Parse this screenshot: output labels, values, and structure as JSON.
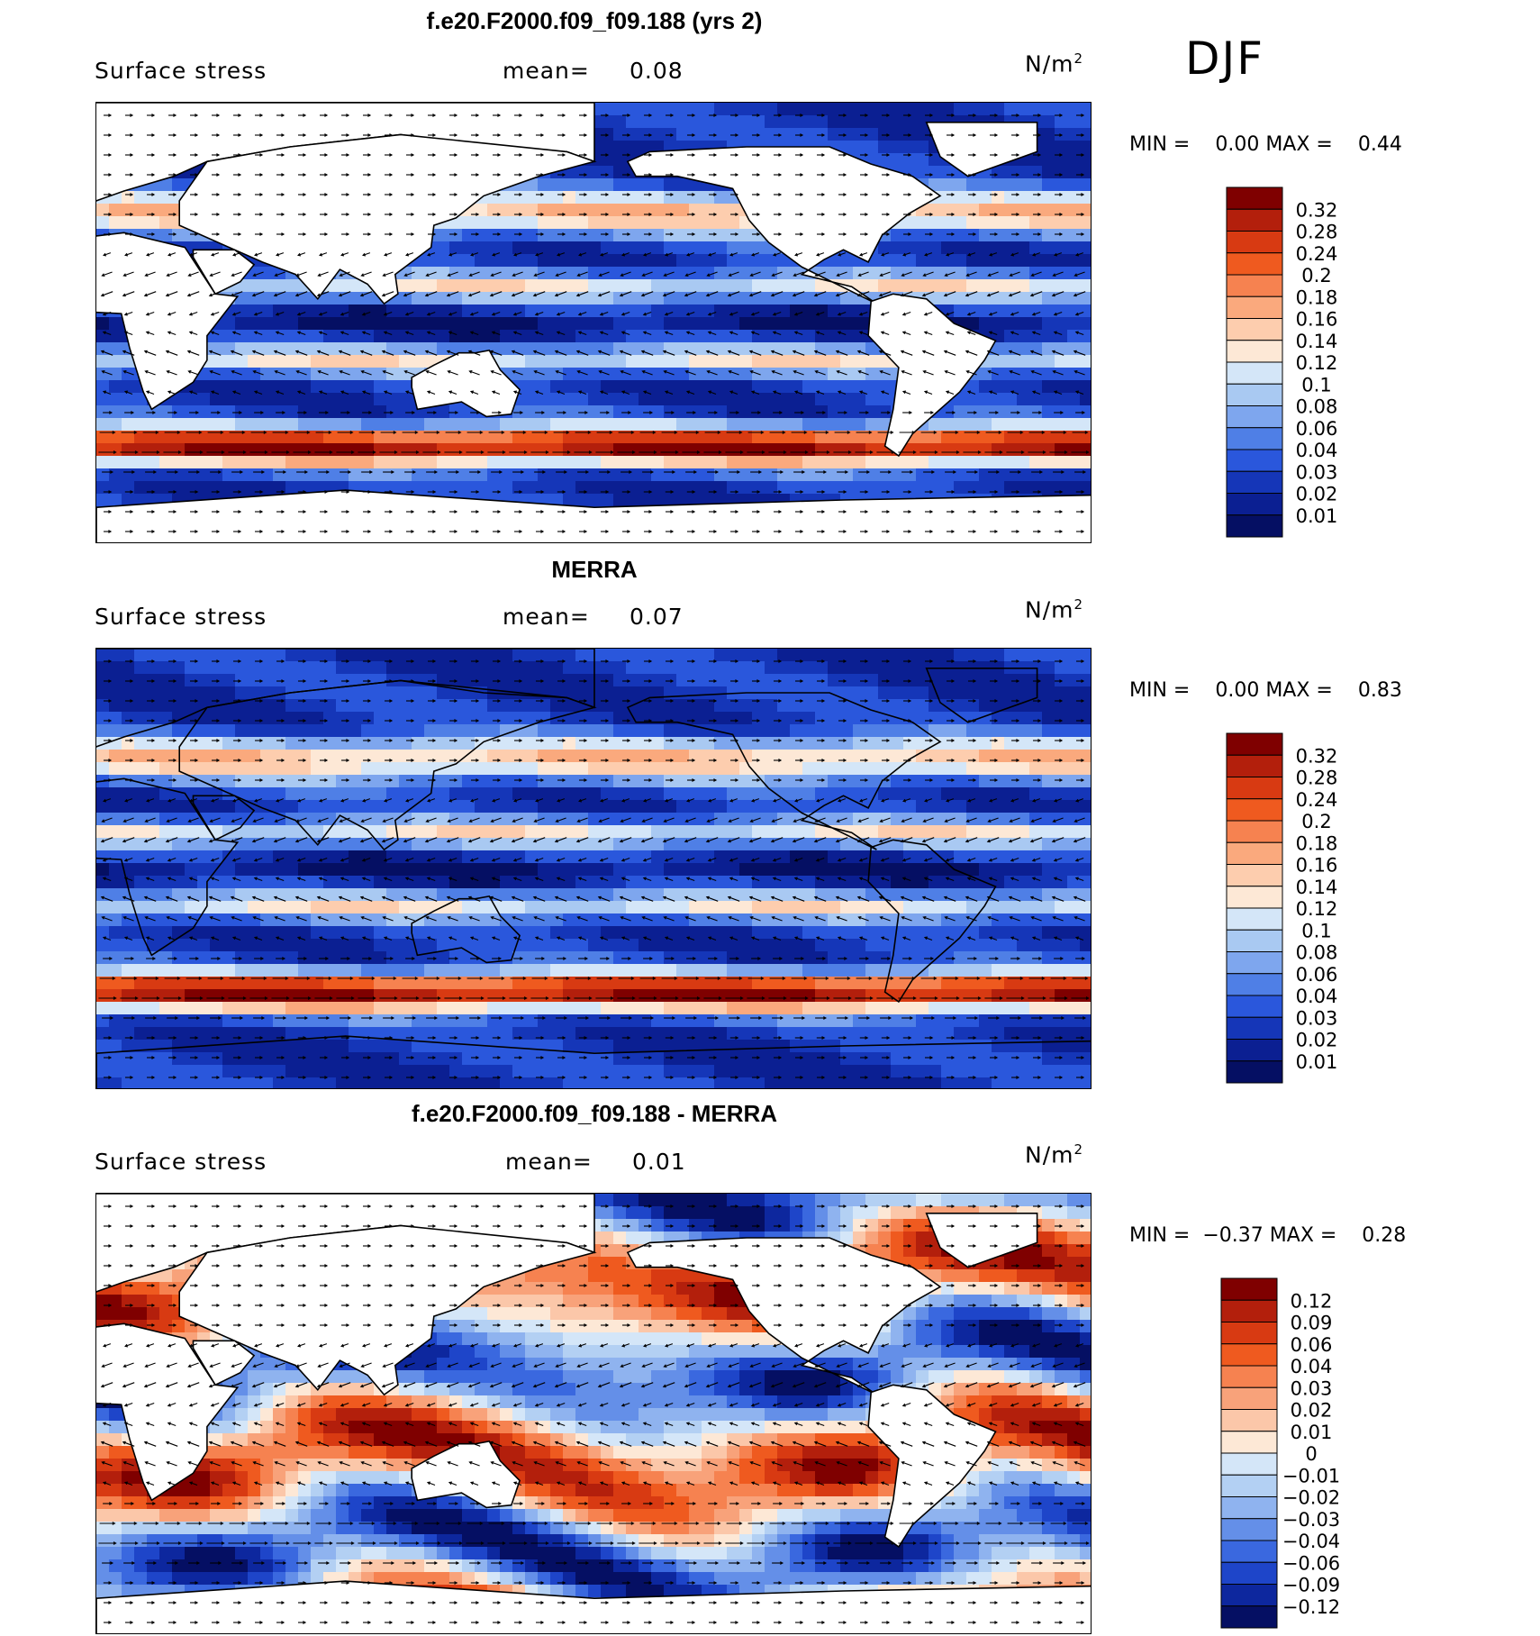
{
  "season": "DJF",
  "panels": [
    {
      "title": "f.e20.F2000.f09_f09.188 (yrs 2)",
      "variable": "Surface stress",
      "mean_label": "mean=",
      "mean_value": "0.08",
      "units": "N/m",
      "units_exp": "2",
      "min_label": "MIN =",
      "min_value": "0.00",
      "max_label": "MAX =",
      "max_value": "0.44",
      "colorbar": {
        "labels": [
          "0.32",
          "0.28",
          "0.24",
          "0.2",
          "0.18",
          "0.16",
          "0.14",
          "0.12",
          "0.1",
          "0.08",
          "0.06",
          "0.04",
          "0.03",
          "0.02",
          "0.01"
        ],
        "colors": [
          "#7f0000",
          "#b31f0c",
          "#d83a12",
          "#ef5a1f",
          "#f68250",
          "#faa97d",
          "#fdcdae",
          "#fde8d6",
          "#d4e6f8",
          "#a9c9f2",
          "#7ea6ee",
          "#4f7fe6",
          "#2a57dc",
          "#1536b8",
          "#0b1f92",
          "#050f63"
        ]
      },
      "field_type": "model"
    },
    {
      "title": "MERRA",
      "variable": "Surface stress",
      "mean_label": "mean=",
      "mean_value": "0.07",
      "units": "N/m",
      "units_exp": "2",
      "min_label": "MIN =",
      "min_value": "0.00",
      "max_label": "MAX =",
      "max_value": "0.83",
      "colorbar": {
        "labels": [
          "0.32",
          "0.28",
          "0.24",
          "0.2",
          "0.18",
          "0.16",
          "0.14",
          "0.12",
          "0.1",
          "0.08",
          "0.06",
          "0.04",
          "0.03",
          "0.02",
          "0.01"
        ],
        "colors": [
          "#7f0000",
          "#b31f0c",
          "#d83a12",
          "#ef5a1f",
          "#f68250",
          "#faa97d",
          "#fdcdae",
          "#fde8d6",
          "#d4e6f8",
          "#a9c9f2",
          "#7ea6ee",
          "#4f7fe6",
          "#2a57dc",
          "#1536b8",
          "#0b1f92",
          "#050f63"
        ]
      },
      "field_type": "obs"
    },
    {
      "title": "f.e20.F2000.f09_f09.188 - MERRA",
      "variable": "Surface stress",
      "mean_label": "mean=",
      "mean_value": "0.01",
      "units": "N/m",
      "units_exp": "2",
      "min_label": "MIN =",
      "min_value": "−0.37",
      "max_label": "MAX =",
      "max_value": "0.28",
      "colorbar": {
        "labels": [
          "0.12",
          "0.09",
          "0.06",
          "0.04",
          "0.03",
          "0.02",
          "0.01",
          "0",
          "−0.01",
          "−0.02",
          "−0.03",
          "−0.04",
          "−0.06",
          "−0.09",
          "−0.12"
        ],
        "colors": [
          "#7f0000",
          "#b31f0c",
          "#d83a12",
          "#ef5a1f",
          "#f68250",
          "#f8a27a",
          "#fbc7a9",
          "#fde8d6",
          "#d4e6f8",
          "#b3d0f3",
          "#8fb3ef",
          "#648fe8",
          "#3a68df",
          "#1e45c9",
          "#0d279e",
          "#050f63"
        ]
      },
      "field_type": "diff"
    }
  ]
}
